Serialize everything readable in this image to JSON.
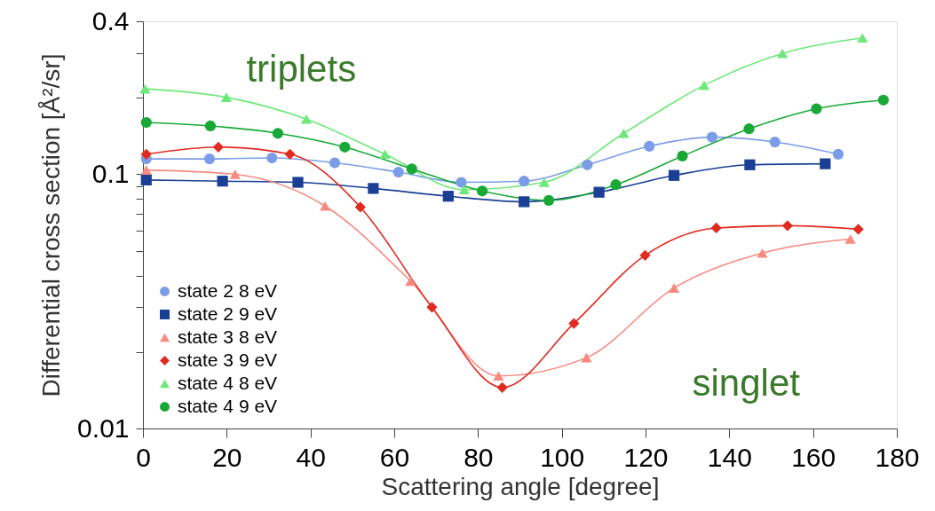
{
  "chart_data": {
    "type": "line",
    "xlabel": "Scattering angle [degree]",
    "ylabel": "Differential cross section [Å²/sr]",
    "xlim": [
      0,
      180
    ],
    "xticks": [
      0,
      20,
      40,
      60,
      80,
      100,
      120,
      140,
      160,
      180
    ],
    "ylim": [
      0.01,
      0.4
    ],
    "yticks": [
      0.01,
      {
        "value": 0.02,
        "label": null
      },
      {
        "value": 0.03,
        "label": null
      },
      {
        "value": 0.04,
        "label": null
      },
      {
        "value": 0.05,
        "label": null
      },
      {
        "value": 0.06,
        "label": null
      },
      {
        "value": 0.07,
        "label": null
      },
      {
        "value": 0.08,
        "label": null
      },
      {
        "value": 0.09,
        "label": null
      },
      0.1,
      {
        "value": 0.2,
        "label": null
      },
      {
        "value": 0.3,
        "label": null
      },
      0.4
    ],
    "log": true,
    "grid": false,
    "legend": "bottom left",
    "line_style": "solid",
    "annotations": [
      "triplets",
      "singlet"
    ],
    "series": [
      {
        "name": "state 2 8 eV",
        "color": "#7b9de8",
        "marker": "circle",
        "x": [
          0.8,
          15.9,
          30.8,
          45.8,
          61,
          76,
          91,
          106.1,
          120.9,
          135.9,
          150.9,
          166
        ],
        "values": [
          0.115,
          0.115,
          0.116,
          0.111,
          0.102,
          0.093,
          0.094,
          0.109,
          0.129,
          0.14,
          0.134,
          0.12
        ]
      },
      {
        "name": "state 2 9 eV",
        "color": "#1a3f94",
        "marker": "square",
        "x": [
          0.8,
          19,
          37,
          55,
          72.9,
          91,
          108.9,
          126.8,
          144.9,
          162.9
        ],
        "values": [
          0.095,
          0.094,
          0.093,
          0.088,
          0.082,
          0.078,
          0.085,
          0.099,
          0.109,
          0.11
        ]
      },
      {
        "name": "state 3 8 eV",
        "color": "#f88a80",
        "marker": "triangle",
        "x": [
          0.8,
          22,
          43.5,
          63.9,
          84.9,
          105.9,
          126.8,
          147.9,
          168.9
        ],
        "values": [
          0.104,
          0.1,
          0.075,
          0.038,
          0.0161,
          0.019,
          0.0357,
          0.049,
          0.0556
        ]
      },
      {
        "name": "state 3 9 eV",
        "color": "#e02b20",
        "marker": "diamond",
        "x": [
          0.8,
          18,
          35.1,
          51.9,
          69,
          85.8,
          102.9,
          119.9,
          136.9,
          153.9,
          170.8
        ],
        "values": [
          0.12,
          0.128,
          0.12,
          0.0743,
          0.03,
          0.0145,
          0.0259,
          0.048,
          0.0615,
          0.0628,
          0.0608
        ]
      },
      {
        "name": "state 4 8 eV",
        "color": "#6ee87a",
        "marker": "triangle",
        "x": [
          0.5,
          19.9,
          39,
          57.8,
          76.7,
          95.8,
          114.8,
          134,
          152.7,
          171.8
        ],
        "values": [
          0.217,
          0.201,
          0.165,
          0.12,
          0.087,
          0.093,
          0.145,
          0.224,
          0.299,
          0.344
        ]
      },
      {
        "name": "state 4 9 eV",
        "color": "#18a836",
        "marker": "circle",
        "x": [
          0.8,
          16.1,
          32.2,
          48.2,
          64.2,
          81,
          96.9,
          112.9,
          128.8,
          144.7,
          160.8,
          176.8
        ],
        "values": [
          0.16,
          0.155,
          0.145,
          0.128,
          0.105,
          0.086,
          0.079,
          0.091,
          0.118,
          0.151,
          0.181,
          0.196
        ]
      }
    ]
  }
}
